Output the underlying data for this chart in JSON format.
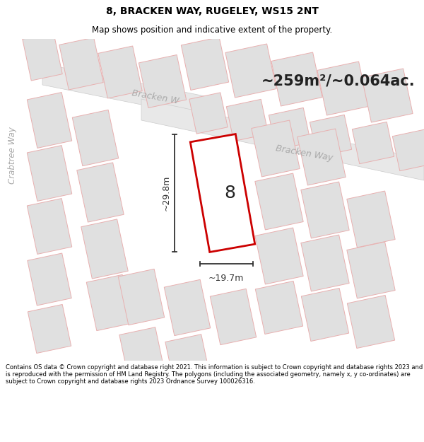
{
  "title": "8, BRACKEN WAY, RUGELEY, WS15 2NT",
  "subtitle": "Map shows position and indicative extent of the property.",
  "area_label": "~259m²/~0.064ac.",
  "plot_number": "8",
  "dim_width": "~19.7m",
  "dim_height": "~29.8m",
  "road_label_left": "Bracken W",
  "road_label_right": "Bracken Way",
  "road_label_left2": "Crabtree Way",
  "footer_text": "Contains OS data © Crown copyright and database right 2021. This information is subject to Crown copyright and database rights 2023 and is reproduced with the permission of HM Land Registry. The polygons (including the associated geometry, namely x, y co-ordinates) are subject to Crown copyright and database rights 2023 Ordnance Survey 100026316.",
  "bg_color": "#ffffff",
  "map_bg": "#ffffff",
  "plot8_fill": "#ffffff",
  "plot8_edge": "#cc0000",
  "neighbor_fill": "#e0e0e0",
  "neighbor_edge": "#e8b0b0",
  "road_fill": "#e8e8e8",
  "road_edge": "#cccccc",
  "dim_color": "#333333",
  "label_color": "#aaaaaa"
}
